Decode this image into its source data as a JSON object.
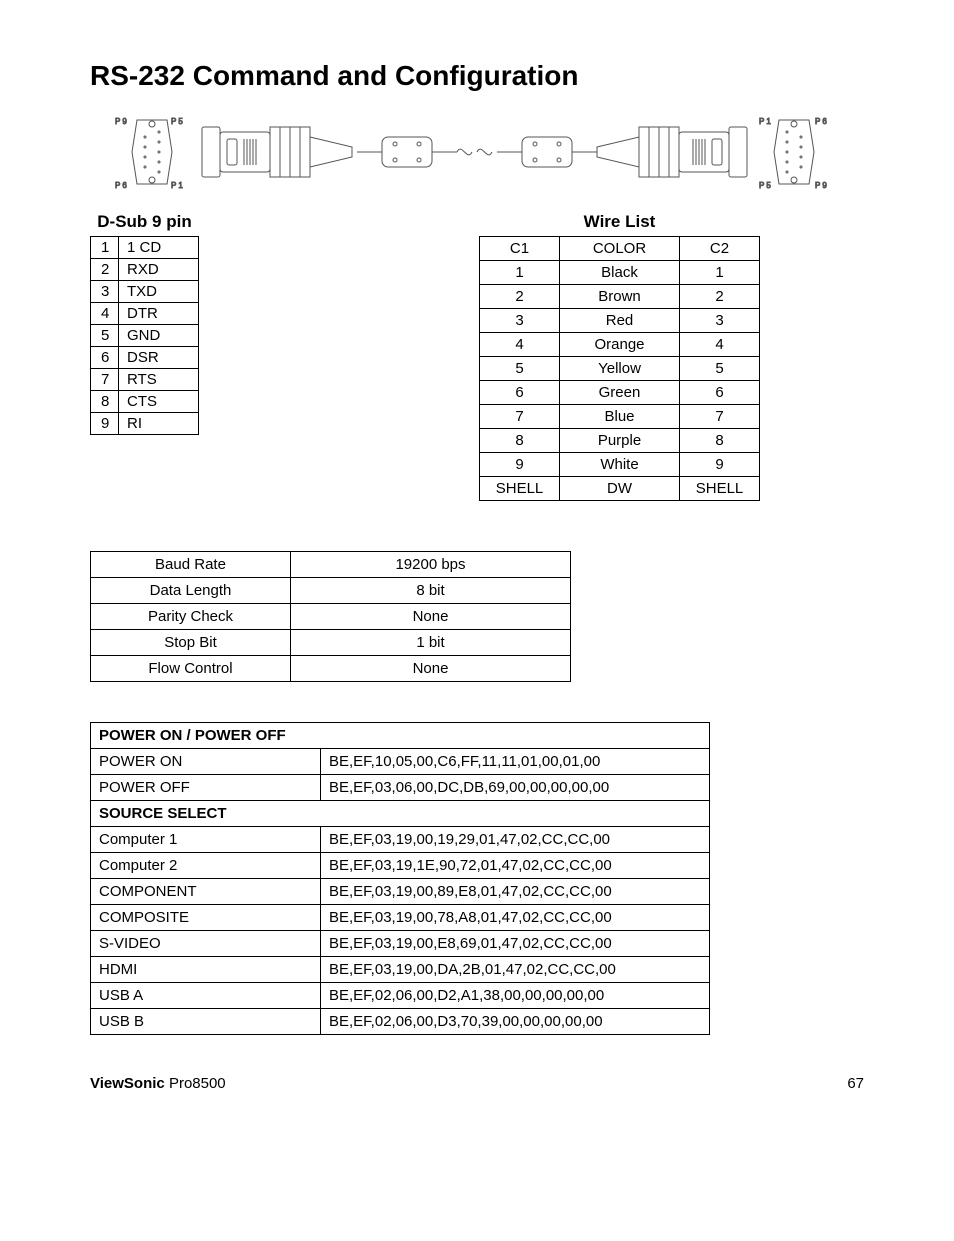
{
  "title": "RS-232 Command and Configuration",
  "diagram": {
    "left_labels": {
      "p9": "P 9",
      "p5": "P 5",
      "p6": "P 6",
      "p1": "P 1"
    },
    "right_labels": {
      "p1": "P 1",
      "p6": "P 6",
      "p5": "P 5",
      "p9": "P 9"
    }
  },
  "dsub": {
    "title": "D-Sub 9 pin",
    "rows": [
      [
        "1",
        "1 CD"
      ],
      [
        "2",
        "RXD"
      ],
      [
        "3",
        "TXD"
      ],
      [
        "4",
        "DTR"
      ],
      [
        "5",
        "GND"
      ],
      [
        "6",
        "DSR"
      ],
      [
        "7",
        "RTS"
      ],
      [
        "8",
        "CTS"
      ],
      [
        "9",
        "RI"
      ]
    ]
  },
  "wire": {
    "title": "Wire List",
    "header": [
      "C1",
      "COLOR",
      "C2"
    ],
    "rows": [
      [
        "1",
        "Black",
        "1"
      ],
      [
        "2",
        "Brown",
        "2"
      ],
      [
        "3",
        "Red",
        "3"
      ],
      [
        "4",
        "Orange",
        "4"
      ],
      [
        "5",
        "Yellow",
        "5"
      ],
      [
        "6",
        "Green",
        "6"
      ],
      [
        "7",
        "Blue",
        "7"
      ],
      [
        "8",
        "Purple",
        "8"
      ],
      [
        "9",
        "White",
        "9"
      ],
      [
        "SHELL",
        "DW",
        "SHELL"
      ]
    ]
  },
  "settings": {
    "rows": [
      [
        "Baud Rate",
        "19200 bps"
      ],
      [
        "Data Length",
        "8 bit"
      ],
      [
        "Parity Check",
        "None"
      ],
      [
        "Stop Bit",
        "1 bit"
      ],
      [
        "Flow Control",
        "None"
      ]
    ]
  },
  "commands": {
    "sections": [
      {
        "header": "POWER ON / POWER OFF",
        "rows": [
          [
            "POWER ON",
            "BE,EF,10,05,00,C6,FF,11,11,01,00,01,00"
          ],
          [
            "POWER OFF",
            "BE,EF,03,06,00,DC,DB,69,00,00,00,00,00"
          ]
        ]
      },
      {
        "header": "SOURCE SELECT",
        "rows": [
          [
            "Computer 1",
            "BE,EF,03,19,00,19,29,01,47,02,CC,CC,00"
          ],
          [
            "Computer 2",
            "BE,EF,03,19,1E,90,72,01,47,02,CC,CC,00"
          ],
          [
            "COMPONENT",
            "BE,EF,03,19,00,89,E8,01,47,02,CC,CC,00"
          ],
          [
            "COMPOSITE",
            "BE,EF,03,19,00,78,A8,01,47,02,CC,CC,00"
          ],
          [
            "S-VIDEO",
            "BE,EF,03,19,00,E8,69,01,47,02,CC,CC,00"
          ],
          [
            "HDMI",
            "BE,EF,03,19,00,DA,2B,01,47,02,CC,CC,00"
          ],
          [
            "USB A",
            "BE,EF,02,06,00,D2,A1,38,00,00,00,00,00"
          ],
          [
            "USB B",
            "BE,EF,02,06,00,D3,70,39,00,00,00,00,00"
          ]
        ]
      }
    ]
  },
  "footer": {
    "brand": "ViewSonic",
    "model": "Pro8500",
    "page": "67"
  }
}
